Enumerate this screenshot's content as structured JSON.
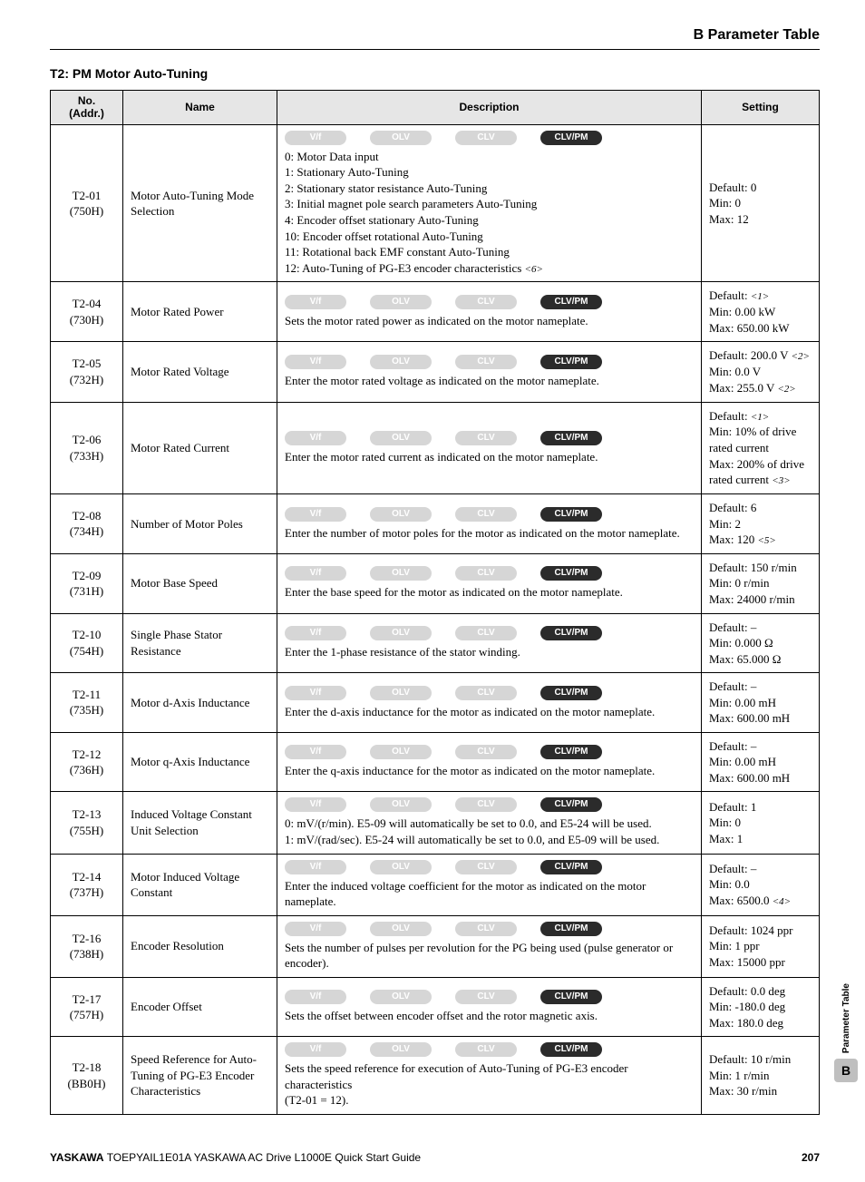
{
  "header": {
    "right_title": "B  Parameter Table"
  },
  "section_title": "T2: PM Motor Auto-Tuning",
  "table": {
    "columns": {
      "no": "No.\n(Addr.)",
      "name": "Name",
      "description": "Description",
      "setting": "Setting"
    },
    "modes": [
      "V/f",
      "OLV",
      "CLV",
      "CLV/PM"
    ],
    "rows": [
      {
        "no": "T2-01\n(750H)",
        "name": "Motor Auto-Tuning Mode Selection",
        "active_modes": [
          3
        ],
        "desc_lines": [
          "0: Motor Data input",
          "1: Stationary Auto-Tuning",
          "2: Stationary stator resistance Auto-Tuning",
          "3: Initial magnet pole search parameters Auto-Tuning",
          "4: Encoder offset stationary Auto-Tuning",
          "10: Encoder offset rotational Auto-Tuning",
          "11: Rotational back EMF constant Auto-Tuning",
          "12: Auto-Tuning of PG-E3 encoder characteristics <6>"
        ],
        "setting_lines": [
          "Default: 0",
          "Min: 0",
          "Max: 12"
        ]
      },
      {
        "no": "T2-04\n(730H)",
        "name": "Motor Rated Power",
        "active_modes": [
          3
        ],
        "desc_lines": [
          "Sets the motor rated power as indicated on the motor nameplate."
        ],
        "setting_lines": [
          "Default: <1>",
          "Min: 0.00 kW",
          "Max: 650.00 kW"
        ]
      },
      {
        "no": "T2-05\n(732H)",
        "name": "Motor Rated Voltage",
        "active_modes": [
          3
        ],
        "desc_lines": [
          "Enter the motor rated voltage as indicated on the motor nameplate."
        ],
        "setting_lines": [
          "Default: 200.0 V <2>",
          "Min: 0.0 V",
          "Max: 255.0 V <2>"
        ]
      },
      {
        "no": "T2-06\n(733H)",
        "name": "Motor Rated Current",
        "active_modes": [
          3
        ],
        "desc_lines": [
          "Enter the motor rated current as indicated on the motor nameplate."
        ],
        "setting_lines": [
          "Default: <1>",
          "Min: 10% of drive rated current",
          "Max: 200% of drive rated current <3>"
        ]
      },
      {
        "no": "T2-08\n(734H)",
        "name": "Number of Motor Poles",
        "active_modes": [
          3
        ],
        "desc_lines": [
          "Enter the number of motor poles for the motor as indicated on the motor nameplate."
        ],
        "setting_lines": [
          "Default: 6",
          "Min: 2",
          "Max: 120 <5>"
        ]
      },
      {
        "no": "T2-09\n(731H)",
        "name": "Motor Base Speed",
        "active_modes": [
          3
        ],
        "desc_lines": [
          "Enter the base speed for the motor as indicated on the motor nameplate."
        ],
        "setting_lines": [
          "Default: 150 r/min",
          "Min: 0 r/min",
          "Max: 24000 r/min"
        ]
      },
      {
        "no": "T2-10\n(754H)",
        "name": "Single Phase Stator Resistance",
        "active_modes": [
          3
        ],
        "desc_lines": [
          "Enter the 1-phase resistance of the stator winding."
        ],
        "setting_lines": [
          "Default: –",
          "Min: 0.000 Ω",
          "Max: 65.000 Ω"
        ]
      },
      {
        "no": "T2-11\n(735H)",
        "name": "Motor d-Axis Inductance",
        "active_modes": [
          3
        ],
        "desc_lines": [
          "Enter the d-axis inductance for the motor as indicated on the motor nameplate."
        ],
        "setting_lines": [
          "Default: –",
          "Min: 0.00 mH",
          "Max: 600.00 mH"
        ]
      },
      {
        "no": "T2-12\n(736H)",
        "name": "Motor q-Axis Inductance",
        "active_modes": [
          3
        ],
        "desc_lines": [
          "Enter the q-axis inductance for the motor as indicated on the motor nameplate."
        ],
        "setting_lines": [
          "Default: –",
          "Min: 0.00 mH",
          "Max: 600.00 mH"
        ]
      },
      {
        "no": "T2-13\n(755H)",
        "name": "Induced Voltage Constant Unit Selection",
        "active_modes": [
          3
        ],
        "desc_lines": [
          "0: mV/(r/min). E5-09 will automatically be set to 0.0, and E5-24 will be used.",
          "1: mV/(rad/sec). E5-24 will automatically be set to 0.0, and E5-09 will be used."
        ],
        "setting_lines": [
          "Default: 1",
          "Min: 0",
          "Max: 1"
        ]
      },
      {
        "no": "T2-14\n(737H)",
        "name": "Motor Induced Voltage Constant",
        "active_modes": [
          3
        ],
        "desc_lines": [
          "Enter the induced voltage coefficient for the motor as indicated on the motor nameplate."
        ],
        "setting_lines": [
          "Default: –",
          "Min: 0.0",
          "Max: 6500.0 <4>"
        ]
      },
      {
        "no": "T2-16\n(738H)",
        "name": "Encoder Resolution",
        "active_modes": [
          3
        ],
        "desc_lines": [
          "Sets the number of pulses per revolution for the PG being used (pulse generator or encoder)."
        ],
        "setting_lines": [
          "Default: 1024 ppr",
          "Min: 1 ppr",
          "Max: 15000 ppr"
        ]
      },
      {
        "no": "T2-17\n(757H)",
        "name": "Encoder Offset",
        "active_modes": [
          3
        ],
        "desc_lines": [
          "Sets the offset between encoder offset and the rotor magnetic axis."
        ],
        "setting_lines": [
          "Default: 0.0 deg",
          "Min: -180.0 deg",
          "Max: 180.0 deg"
        ]
      },
      {
        "no": "T2-18\n(BB0H)",
        "name": "Speed Reference for Auto-Tuning of PG-E3 Encoder Characteristics",
        "active_modes": [
          3
        ],
        "desc_lines": [
          "Sets the speed reference for execution of Auto-Tuning of PG-E3 encoder characteristics",
          "(T2-01 = 12)."
        ],
        "setting_lines": [
          "Default: 10 r/min",
          "Min: 1 r/min",
          "Max: 30 r/min"
        ]
      }
    ]
  },
  "footer": {
    "brand": "YASKAWA",
    "doc": " TOEPYAIL1E01A YASKAWA AC Drive L1000E Quick Start Guide",
    "page": "207"
  },
  "side_tab": {
    "vtext": "Parameter Table",
    "letter": "B"
  }
}
